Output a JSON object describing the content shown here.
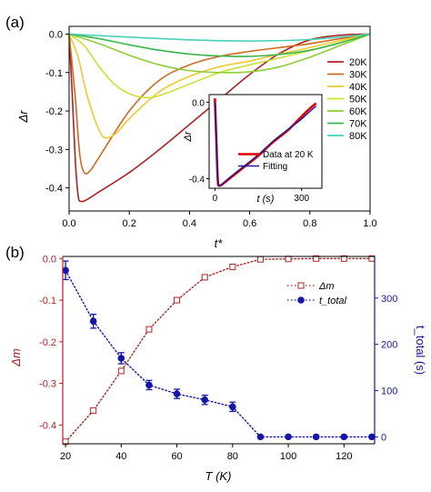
{
  "chart_data": [
    {
      "type": "line",
      "panel_label": "(a)",
      "xlabel": "t*",
      "ylabel": "Δr",
      "xlim": [
        0,
        1.0
      ],
      "ylim": [
        -0.46,
        0.02
      ],
      "xticks": [
        0.0,
        0.2,
        0.4,
        0.6,
        0.8,
        1.0
      ],
      "yticks": [
        0.0,
        -0.1,
        -0.2,
        -0.3,
        -0.4
      ],
      "xtick_labels": [
        "0.0",
        "0.2",
        "0.4",
        "0.6",
        "0.8",
        "1.0"
      ],
      "ytick_labels": [
        "0.0",
        "-0.1",
        "-0.2",
        "-0.3",
        "-0.4"
      ],
      "legend_position": "right",
      "series": [
        {
          "name": "20K",
          "color": "#b22222",
          "points": [
            [
              0,
              0
            ],
            [
              0.01,
              -0.15
            ],
            [
              0.02,
              -0.32
            ],
            [
              0.03,
              -0.42
            ],
            [
              0.04,
              -0.435
            ],
            [
              0.06,
              -0.43
            ],
            [
              0.1,
              -0.41
            ],
            [
              0.2,
              -0.36
            ],
            [
              0.3,
              -0.3
            ],
            [
              0.4,
              -0.235
            ],
            [
              0.5,
              -0.17
            ],
            [
              0.6,
              -0.105
            ],
            [
              0.7,
              -0.05
            ],
            [
              0.8,
              -0.015
            ],
            [
              0.9,
              -0.003
            ],
            [
              1.0,
              0
            ]
          ]
        },
        {
          "name": "30K",
          "color": "#d2691e",
          "points": [
            [
              0,
              0
            ],
            [
              0.02,
              -0.16
            ],
            [
              0.035,
              -0.31
            ],
            [
              0.05,
              -0.36
            ],
            [
              0.07,
              -0.355
            ],
            [
              0.1,
              -0.32
            ],
            [
              0.2,
              -0.2
            ],
            [
              0.3,
              -0.12
            ],
            [
              0.4,
              -0.08
            ],
            [
              0.5,
              -0.058
            ],
            [
              0.6,
              -0.045
            ],
            [
              0.7,
              -0.035
            ],
            [
              0.8,
              -0.025
            ],
            [
              0.9,
              -0.012
            ],
            [
              1.0,
              0
            ]
          ]
        },
        {
          "name": "40K",
          "color": "#f0c830",
          "points": [
            [
              0,
              0
            ],
            [
              0.03,
              -0.06
            ],
            [
              0.06,
              -0.16
            ],
            [
              0.1,
              -0.25
            ],
            [
              0.125,
              -0.27
            ],
            [
              0.16,
              -0.255
            ],
            [
              0.2,
              -0.22
            ],
            [
              0.3,
              -0.15
            ],
            [
              0.4,
              -0.11
            ],
            [
              0.5,
              -0.085
            ],
            [
              0.6,
              -0.07
            ],
            [
              0.7,
              -0.052
            ],
            [
              0.8,
              -0.035
            ],
            [
              0.9,
              -0.017
            ],
            [
              1.0,
              0
            ]
          ]
        },
        {
          "name": "50K",
          "color": "#cde032",
          "points": [
            [
              0,
              0
            ],
            [
              0.05,
              -0.03
            ],
            [
              0.1,
              -0.085
            ],
            [
              0.15,
              -0.13
            ],
            [
              0.2,
              -0.155
            ],
            [
              0.25,
              -0.165
            ],
            [
              0.3,
              -0.16
            ],
            [
              0.4,
              -0.13
            ],
            [
              0.5,
              -0.1
            ],
            [
              0.6,
              -0.08
            ],
            [
              0.7,
              -0.062
            ],
            [
              0.8,
              -0.043
            ],
            [
              0.9,
              -0.022
            ],
            [
              1.0,
              0
            ]
          ]
        },
        {
          "name": "60K",
          "color": "#8ccf35",
          "points": [
            [
              0,
              0
            ],
            [
              0.1,
              -0.025
            ],
            [
              0.2,
              -0.055
            ],
            [
              0.3,
              -0.08
            ],
            [
              0.4,
              -0.095
            ],
            [
              0.5,
              -0.1
            ],
            [
              0.6,
              -0.098
            ],
            [
              0.7,
              -0.085
            ],
            [
              0.8,
              -0.06
            ],
            [
              0.9,
              -0.03
            ],
            [
              1.0,
              0
            ]
          ]
        },
        {
          "name": "70K",
          "color": "#3cb44b",
          "points": [
            [
              0,
              0
            ],
            [
              0.1,
              -0.012
            ],
            [
              0.2,
              -0.028
            ],
            [
              0.3,
              -0.042
            ],
            [
              0.4,
              -0.052
            ],
            [
              0.5,
              -0.057
            ],
            [
              0.6,
              -0.058
            ],
            [
              0.7,
              -0.053
            ],
            [
              0.8,
              -0.042
            ],
            [
              0.9,
              -0.023
            ],
            [
              1.0,
              0
            ]
          ]
        },
        {
          "name": "80K",
          "color": "#48d1b9",
          "points": [
            [
              0,
              0
            ],
            [
              0.2,
              -0.008
            ],
            [
              0.4,
              -0.015
            ],
            [
              0.6,
              -0.018
            ],
            [
              0.8,
              -0.014
            ],
            [
              1.0,
              0
            ]
          ]
        }
      ],
      "inset": {
        "xlabel": "t (s)",
        "ylabel": "Δr",
        "xlim": [
          -20,
          370
        ],
        "ylim": [
          -0.45,
          0.04
        ],
        "xticks": [
          0,
          300
        ],
        "yticks": [
          0.0,
          -0.4
        ],
        "xtick_labels": [
          "0",
          "300"
        ],
        "ytick_labels": [
          "0.0",
          "-0.4"
        ],
        "legend": [
          "Data at 20 K",
          "Fitting"
        ],
        "series": [
          {
            "name": "Data at 20 K",
            "color": "#e00000",
            "points": [
              [
                0,
                0.02
              ],
              [
                5,
                -0.2
              ],
              [
                10,
                -0.41
              ],
              [
                15,
                -0.435
              ],
              [
                25,
                -0.43
              ],
              [
                50,
                -0.4
              ],
              [
                100,
                -0.34
              ],
              [
                150,
                -0.28
              ],
              [
                200,
                -0.21
              ],
              [
                250,
                -0.15
              ],
              [
                290,
                -0.09
              ],
              [
                320,
                -0.045
              ],
              [
                350,
                -0.005
              ]
            ]
          },
          {
            "name": "Fitting",
            "color": "#1a1aa0",
            "points": [
              [
                0,
                0
              ],
              [
                5,
                -0.2
              ],
              [
                10,
                -0.4
              ],
              [
                16,
                -0.435
              ],
              [
                25,
                -0.428
              ],
              [
                50,
                -0.395
              ],
              [
                100,
                -0.335
              ],
              [
                150,
                -0.275
              ],
              [
                200,
                -0.205
              ],
              [
                250,
                -0.145
              ],
              [
                290,
                -0.1
              ],
              [
                320,
                -0.06
              ],
              [
                350,
                -0.02
              ]
            ]
          }
        ]
      }
    },
    {
      "type": "line",
      "panel_label": "(b)",
      "xlabel": "T (K)",
      "ylabel_left": "Δm",
      "ylabel_right": "t_total (s)",
      "xlim": [
        19,
        131
      ],
      "ylim_left": [
        -0.445,
        0.005
      ],
      "ylim_right": [
        -15,
        390
      ],
      "xticks": [
        20,
        40,
        60,
        80,
        100,
        120
      ],
      "xtick_labels": [
        "20",
        "40",
        "60",
        "80",
        "100",
        "120"
      ],
      "yticks_left": [
        0.0,
        -0.1,
        -0.2,
        -0.3,
        -0.4
      ],
      "ytick_labels_left": [
        "0.0",
        "-0.1",
        "-0.2",
        "-0.3",
        "-0.4"
      ],
      "yticks_right": [
        0,
        100,
        200,
        300
      ],
      "ytick_labels_right": [
        "0",
        "100",
        "200",
        "300"
      ],
      "legend_position": "top-right",
      "legend": [
        "Δm",
        "t_total"
      ],
      "series": [
        {
          "name": "Δm",
          "axis": "left",
          "color": "#b22222",
          "x": [
            20,
            30,
            40,
            50,
            60,
            70,
            80,
            90,
            100,
            110,
            120,
            130
          ],
          "values": [
            -0.44,
            -0.365,
            -0.27,
            -0.17,
            -0.1,
            -0.045,
            -0.02,
            -0.002,
            -0.001,
            0,
            0,
            0
          ]
        },
        {
          "name": "t_total",
          "axis": "right",
          "color": "#1515a8",
          "x": [
            20,
            30,
            40,
            50,
            60,
            70,
            80,
            90,
            100,
            110,
            120,
            130
          ],
          "values": [
            360,
            250,
            170,
            112,
            93,
            80,
            65,
            0,
            0,
            0,
            0,
            0
          ],
          "errors": [
            20,
            15,
            12,
            10,
            10,
            10,
            10,
            0,
            0,
            0,
            0,
            0
          ]
        }
      ]
    }
  ],
  "colors": {
    "panel_b_left": "#b22222",
    "panel_b_right": "#1515a8"
  }
}
